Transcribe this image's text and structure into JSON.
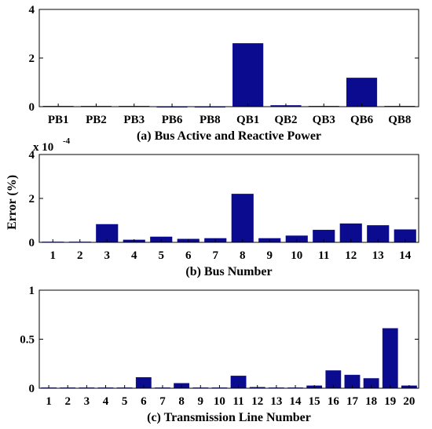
{
  "colors": {
    "bar": "#0b0b8f",
    "axis": "#000000",
    "background": "#ffffff"
  },
  "ylabel": "Error (%)",
  "chart_data": [
    {
      "type": "bar",
      "panel": "a",
      "xlabel": "(a) Bus Active and Reactive Power",
      "categories": [
        "PB1",
        "PB2",
        "PB3",
        "PB6",
        "PB8",
        "QB1",
        "QB2",
        "QB3",
        "QB6",
        "QB8"
      ],
      "values": [
        0.02,
        0.02,
        0.02,
        0.0,
        0.0,
        2.6,
        0.05,
        0.02,
        1.18,
        0.02
      ],
      "ylim": [
        0,
        4
      ],
      "yticks": [
        "0",
        "2",
        "4"
      ],
      "ytick_values": [
        0,
        2,
        4
      ],
      "multiplier": null
    },
    {
      "type": "bar",
      "panel": "b",
      "xlabel": "(b) Bus Number",
      "categories": [
        "1",
        "2",
        "3",
        "4",
        "5",
        "6",
        "7",
        "8",
        "9",
        "10",
        "11",
        "12",
        "13",
        "14"
      ],
      "values": [
        0.02,
        0.02,
        0.82,
        0.11,
        0.25,
        0.15,
        0.18,
        2.2,
        0.18,
        0.3,
        0.56,
        0.85,
        0.77,
        0.58
      ],
      "ylim": [
        0,
        4
      ],
      "yticks": [
        "0",
        "2",
        "4"
      ],
      "ytick_values": [
        0,
        2,
        4
      ],
      "multiplier": {
        "base": "x 10",
        "exponent": "-4"
      }
    },
    {
      "type": "bar",
      "panel": "c",
      "xlabel": "(c) Transmission Line Number",
      "categories": [
        "1",
        "2",
        "3",
        "4",
        "5",
        "6",
        "7",
        "8",
        "9",
        "10",
        "11",
        "12",
        "13",
        "14",
        "15",
        "16",
        "17",
        "18",
        "19",
        "20"
      ],
      "values": [
        0.005,
        0.005,
        0.005,
        0.005,
        0.005,
        0.11,
        0.005,
        0.05,
        0.005,
        0.005,
        0.125,
        0.01,
        0.005,
        0.005,
        0.025,
        0.18,
        0.135,
        0.1,
        0.61,
        0.025
      ],
      "ylim": [
        0,
        1
      ],
      "yticks": [
        "0",
        "0.5",
        "1"
      ],
      "ytick_values": [
        0,
        0.5,
        1
      ],
      "multiplier": null
    }
  ]
}
